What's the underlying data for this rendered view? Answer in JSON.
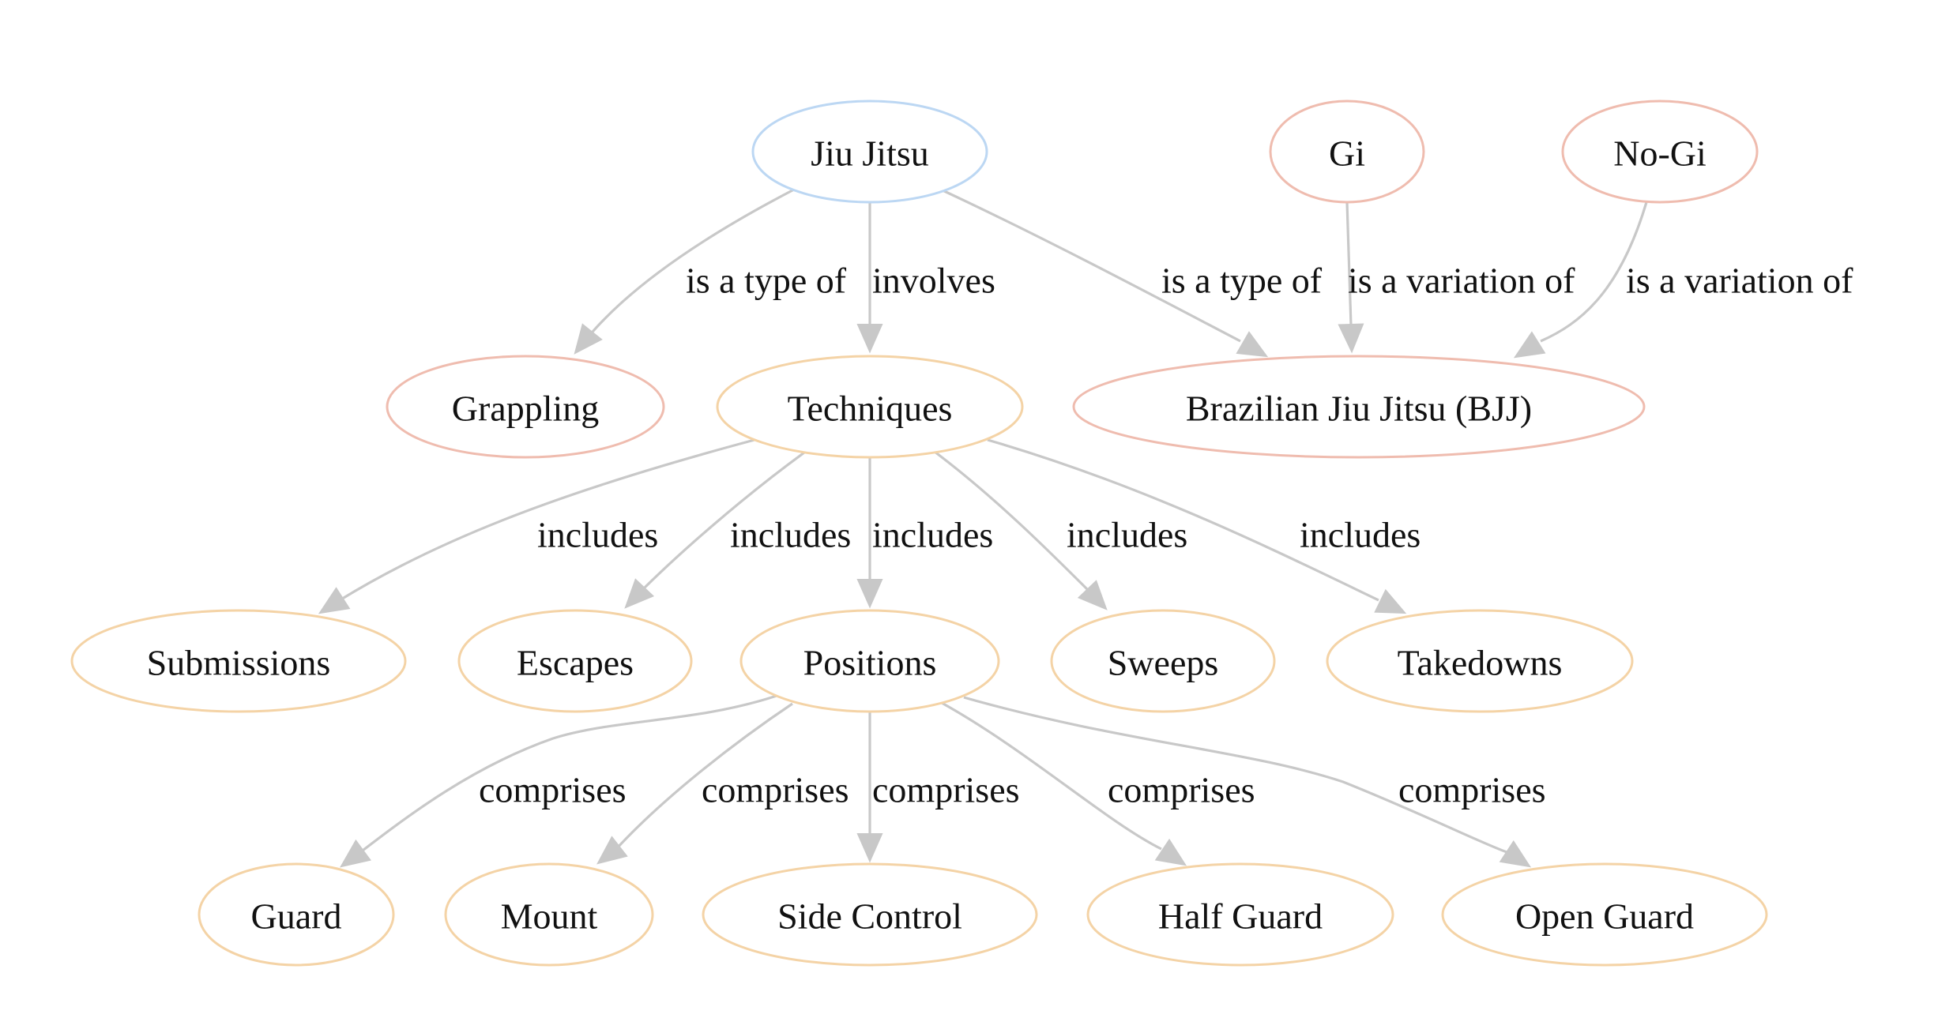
{
  "colors": {
    "root": "#bcd7f3",
    "concept": "#efbcaf",
    "technique": "#f4d3a6",
    "edge": "#c8c8c8",
    "text": "#111111"
  },
  "nodes": [
    {
      "id": "jiu-jitsu",
      "label": "Jiu Jitsu",
      "group": "root"
    },
    {
      "id": "gi",
      "label": "Gi",
      "group": "concept"
    },
    {
      "id": "no-gi",
      "label": "No-Gi",
      "group": "concept"
    },
    {
      "id": "grappling",
      "label": "Grappling",
      "group": "concept"
    },
    {
      "id": "techniques",
      "label": "Techniques",
      "group": "technique"
    },
    {
      "id": "bjj",
      "label": "Brazilian Jiu Jitsu (BJJ)",
      "group": "concept"
    },
    {
      "id": "submissions",
      "label": "Submissions",
      "group": "technique"
    },
    {
      "id": "escapes",
      "label": "Escapes",
      "group": "technique"
    },
    {
      "id": "positions",
      "label": "Positions",
      "group": "technique"
    },
    {
      "id": "sweeps",
      "label": "Sweeps",
      "group": "technique"
    },
    {
      "id": "takedowns",
      "label": "Takedowns",
      "group": "technique"
    },
    {
      "id": "guard",
      "label": "Guard",
      "group": "technique"
    },
    {
      "id": "mount",
      "label": "Mount",
      "group": "technique"
    },
    {
      "id": "side-control",
      "label": "Side Control",
      "group": "technique"
    },
    {
      "id": "half-guard",
      "label": "Half Guard",
      "group": "technique"
    },
    {
      "id": "open-guard",
      "label": "Open Guard",
      "group": "technique"
    }
  ],
  "edges": [
    {
      "from": "jiu-jitsu",
      "to": "grappling",
      "label": "is a type of"
    },
    {
      "from": "jiu-jitsu",
      "to": "techniques",
      "label": "involves"
    },
    {
      "from": "jiu-jitsu",
      "to": "bjj",
      "label": "is a type of"
    },
    {
      "from": "gi",
      "to": "bjj",
      "label": "is a variation of"
    },
    {
      "from": "no-gi",
      "to": "bjj",
      "label": "is a variation of"
    },
    {
      "from": "techniques",
      "to": "submissions",
      "label": "includes"
    },
    {
      "from": "techniques",
      "to": "escapes",
      "label": "includes"
    },
    {
      "from": "techniques",
      "to": "positions",
      "label": "includes"
    },
    {
      "from": "techniques",
      "to": "sweeps",
      "label": "includes"
    },
    {
      "from": "techniques",
      "to": "takedowns",
      "label": "includes"
    },
    {
      "from": "positions",
      "to": "guard",
      "label": "comprises"
    },
    {
      "from": "positions",
      "to": "mount",
      "label": "comprises"
    },
    {
      "from": "positions",
      "to": "side-control",
      "label": "comprises"
    },
    {
      "from": "positions",
      "to": "half-guard",
      "label": "comprises"
    },
    {
      "from": "positions",
      "to": "open-guard",
      "label": "comprises"
    }
  ]
}
